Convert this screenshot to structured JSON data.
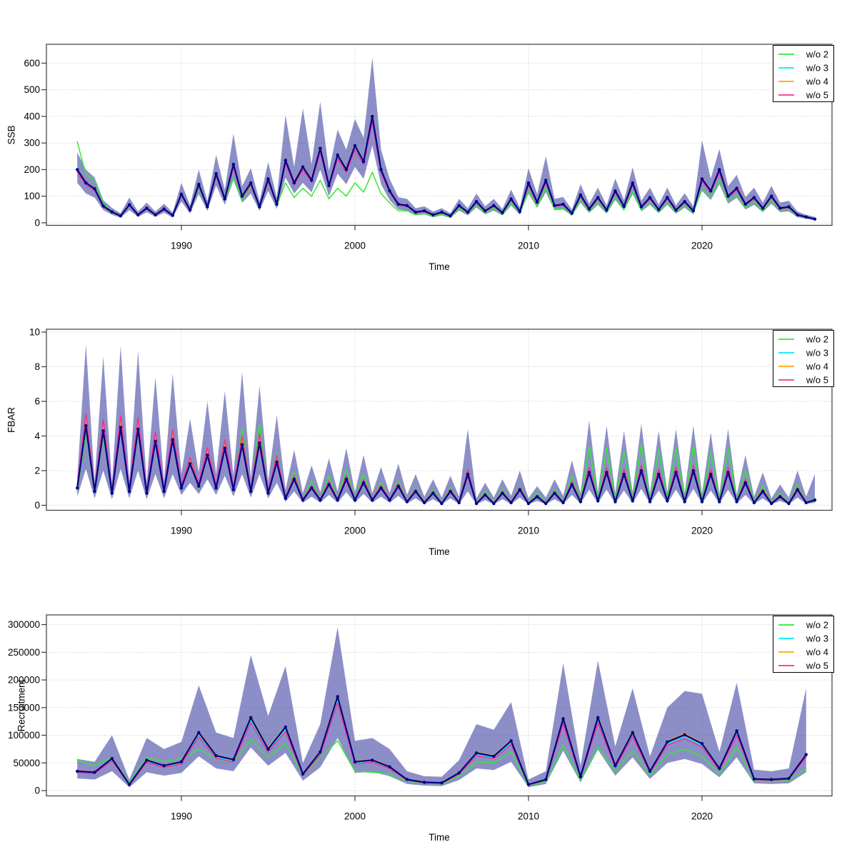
{
  "figure": {
    "background": "#ffffff",
    "panel_count": 3,
    "x_axis_ticks": [
      1990,
      2000,
      2010,
      2020
    ],
    "x_axis_label": "Time"
  },
  "colors": {
    "fit_line": "#00008b",
    "band_fill": "rgba(70,75,165,0.62)",
    "grid": "#c9c9c9",
    "axis": "#3c3c3c",
    "legend_border": "#000000",
    "wo2_green": "#33e833",
    "wo3_cyan": "#00eeee",
    "wo4_orange": "#ffa500",
    "wo5_pink": "#ff2d8d"
  },
  "chart_data": [
    {
      "type": "line",
      "ylabel": "SSB",
      "xlabel": "Time",
      "ylim": [
        0,
        620
      ],
      "yticks": [
        0,
        100,
        200,
        300,
        400,
        500,
        600
      ],
      "xticks": [
        1990,
        2000,
        2010,
        2020
      ],
      "grid": true,
      "legend_position": "top-right",
      "x": {
        "start": 1984,
        "step": 0.5,
        "count": 86
      },
      "band": {
        "lo": [
          150,
          110,
          95,
          48,
          30,
          19,
          48,
          22,
          40,
          22,
          38,
          20,
          80,
          35,
          108,
          45,
          140,
          68,
          160,
          75,
          110,
          45,
          120,
          52,
          170,
          110,
          150,
          115,
          200,
          100,
          185,
          145,
          210,
          165,
          290,
          145,
          85,
          50,
          46,
          28,
          32,
          21,
          28,
          18,
          46,
          28,
          58,
          32,
          46,
          27,
          65,
          30,
          110,
          56,
          115,
          47,
          50,
          26,
          76,
          37,
          68,
          34,
          86,
          45,
          108,
          43,
          68,
          36,
          68,
          34,
          57,
          32,
          120,
          86,
          145,
          72,
          94,
          50,
          68,
          40,
          72,
          40,
          43,
          21,
          15,
          9
        ],
        "hi": [
          265,
          200,
          170,
          85,
          56,
          36,
          95,
          42,
          76,
          42,
          72,
          39,
          150,
          66,
          200,
          82,
          255,
          125,
          335,
          138,
          205,
          82,
          228,
          96,
          405,
          210,
          430,
          220,
          455,
          195,
          350,
          275,
          390,
          320,
          620,
          275,
          165,
          96,
          90,
          55,
          62,
          42,
          55,
          36,
          90,
          55,
          110,
          62,
          90,
          52,
          125,
          58,
          205,
          108,
          250,
          90,
          97,
          50,
          145,
          72,
          132,
          66,
          166,
          86,
          208,
          83,
          132,
          69,
          132,
          66,
          111,
          62,
          310,
          166,
          277,
          138,
          180,
          97,
          132,
          76,
          139,
          76,
          83,
          42,
          30,
          22
        ]
      },
      "series": [
        {
          "name": "w/o 2",
          "color": "#33e833",
          "in_legend": true,
          "values": [
            305,
            180,
            160,
            70,
            45,
            28,
            66,
            30,
            56,
            32,
            50,
            28,
            100,
            46,
            130,
            58,
            175,
            85,
            170,
            85,
            140,
            55,
            155,
            65,
            150,
            95,
            130,
            100,
            160,
            90,
            130,
            100,
            150,
            115,
            190,
            110,
            75,
            45,
            45,
            30,
            35,
            24,
            32,
            22,
            55,
            34,
            65,
            38,
            55,
            32,
            75,
            36,
            120,
            62,
            130,
            52,
            55,
            30,
            85,
            42,
            78,
            40,
            95,
            50,
            120,
            48,
            75,
            40,
            75,
            40,
            65,
            38,
            130,
            95,
            160,
            82,
            105,
            58,
            78,
            46,
            85,
            48,
            52,
            27,
            20,
            13
          ]
        },
        {
          "name": "w/o 3",
          "color": "#00eeee",
          "in_legend": true,
          "derive_from": "fit",
          "offset_frac": -0.03
        },
        {
          "name": "w/o 4",
          "color": "#ffa500",
          "in_legend": true,
          "derive_from": "fit",
          "offset_frac": 0.015
        },
        {
          "name": "w/o 5",
          "color": "#ff2d8d",
          "in_legend": true,
          "derive_from": "fit",
          "offset_frac": -0.05
        },
        {
          "name": "fit",
          "color": "#00008b",
          "in_legend": false,
          "points": true,
          "values": [
            200,
            150,
            128,
            63,
            41,
            26,
            68,
            30,
            55,
            30,
            52,
            28,
            108,
            48,
            145,
            60,
            185,
            90,
            220,
            100,
            150,
            60,
            165,
            70,
            235,
            150,
            210,
            160,
            280,
            140,
            255,
            200,
            290,
            230,
            400,
            200,
            120,
            70,
            65,
            40,
            45,
            30,
            40,
            26,
            65,
            40,
            80,
            45,
            65,
            38,
            90,
            42,
            150,
            78,
            160,
            65,
            70,
            36,
            105,
            52,
            95,
            48,
            120,
            62,
            150,
            60,
            95,
            50,
            95,
            48,
            80,
            45,
            165,
            120,
            200,
            100,
            130,
            70,
            95,
            55,
            100,
            55,
            60,
            30,
            22,
            14
          ]
        }
      ]
    },
    {
      "type": "line",
      "ylabel": "FBAR",
      "xlabel": "Time",
      "ylim": [
        0,
        10
      ],
      "yticks": [
        0,
        2,
        4,
        6,
        8,
        10
      ],
      "xticks": [
        1990,
        2000,
        2010,
        2020
      ],
      "grid": true,
      "legend_position": "top-right",
      "x": {
        "start": 1984,
        "step": 0.5,
        "count": 86
      },
      "band": {
        "lo": [
          0.5,
          2.1,
          0.4,
          2.0,
          0.35,
          2.1,
          0.4,
          2.0,
          0.35,
          1.8,
          0.4,
          1.8,
          0.6,
          1.3,
          0.65,
          1.5,
          0.6,
          1.7,
          0.5,
          1.8,
          0.45,
          1.8,
          0.4,
          1.3,
          0.2,
          0.8,
          0.15,
          0.5,
          0.15,
          0.6,
          0.15,
          0.75,
          0.15,
          0.65,
          0.15,
          0.5,
          0.15,
          0.55,
          0.1,
          0.4,
          0.07,
          0.35,
          0.05,
          0.4,
          0.07,
          0.8,
          0.05,
          0.3,
          0.05,
          0.35,
          0.07,
          0.45,
          0.05,
          0.25,
          0.05,
          0.35,
          0.07,
          0.6,
          0.1,
          0.9,
          0.12,
          0.9,
          0.1,
          0.85,
          0.12,
          0.95,
          0.1,
          0.85,
          0.12,
          0.9,
          0.1,
          0.95,
          0.1,
          0.85,
          0.1,
          0.9,
          0.1,
          0.6,
          0.07,
          0.4,
          0.05,
          0.25,
          0.05,
          0.45,
          0.07,
          0.15
        ],
        "hi": [
          1.6,
          9.3,
          1.4,
          8.6,
          1.3,
          9.2,
          1.4,
          8.9,
          1.3,
          7.4,
          1.4,
          7.6,
          1.8,
          5.0,
          1.9,
          6.0,
          1.8,
          6.6,
          1.7,
          7.7,
          1.6,
          6.9,
          1.4,
          5.2,
          0.9,
          3.2,
          0.7,
          2.3,
          0.75,
          2.7,
          0.8,
          3.3,
          0.75,
          2.9,
          0.7,
          2.2,
          0.7,
          2.4,
          0.6,
          1.8,
          0.5,
          1.5,
          0.45,
          1.7,
          0.5,
          4.4,
          0.4,
          1.3,
          0.45,
          1.5,
          0.55,
          2.0,
          0.4,
          1.1,
          0.45,
          1.5,
          0.55,
          2.6,
          0.7,
          4.9,
          0.75,
          4.6,
          0.7,
          4.3,
          0.75,
          4.7,
          0.7,
          4.3,
          0.75,
          4.4,
          0.7,
          4.6,
          0.65,
          4.2,
          0.65,
          4.4,
          0.6,
          2.9,
          0.5,
          1.9,
          0.4,
          1.2,
          0.45,
          2.0,
          0.5,
          1.8
        ]
      },
      "series": [
        {
          "name": "w/o 2",
          "color": "#33e833",
          "in_legend": true,
          "values": [
            0.8,
            4.2,
            0.7,
            4.0,
            0.65,
            4.6,
            0.75,
            4.2,
            0.7,
            3.9,
            0.75,
            4.0,
            1.0,
            2.6,
            1.0,
            3.1,
            0.95,
            3.6,
            0.85,
            4.4,
            0.8,
            4.7,
            0.7,
            3.0,
            0.45,
            1.9,
            0.35,
            1.4,
            0.35,
            1.7,
            0.35,
            2.1,
            0.35,
            1.8,
            0.3,
            1.3,
            0.3,
            1.4,
            0.25,
            1.0,
            0.2,
            0.9,
            0.15,
            1.0,
            0.2,
            2.1,
            0.15,
            0.8,
            0.15,
            0.9,
            0.2,
            1.1,
            0.15,
            0.7,
            0.15,
            0.9,
            0.2,
            1.7,
            0.25,
            3.4,
            0.3,
            3.3,
            0.25,
            3.1,
            0.3,
            3.5,
            0.25,
            3.2,
            0.3,
            3.3,
            0.25,
            3.4,
            0.25,
            3.1,
            0.25,
            3.3,
            0.25,
            2.0,
            0.2,
            1.1,
            0.15,
            0.7,
            0.15,
            1.2,
            0.2,
            0.4
          ]
        },
        {
          "name": "w/o 3",
          "color": "#00eeee",
          "in_legend": true,
          "derive_from": "fit",
          "offset_frac": 0.04
        },
        {
          "name": "w/o 4",
          "color": "#ffa500",
          "in_legend": true,
          "derive_from": "fit",
          "offset_frac": 0.08
        },
        {
          "name": "w/o 5",
          "color": "#ff2d8d",
          "in_legend": true,
          "derive_from": "fit",
          "offset_frac": 0.15
        },
        {
          "name": "fit",
          "color": "#00008b",
          "in_legend": false,
          "points": true,
          "values": [
            1.0,
            4.6,
            0.8,
            4.3,
            0.7,
            4.5,
            0.8,
            4.4,
            0.7,
            3.7,
            0.8,
            3.8,
            1.0,
            2.4,
            1.1,
            2.9,
            1.0,
            3.3,
            0.9,
            3.5,
            0.8,
            3.6,
            0.7,
            2.5,
            0.4,
            1.5,
            0.3,
            1.0,
            0.3,
            1.2,
            0.3,
            1.5,
            0.3,
            1.3,
            0.3,
            1.0,
            0.3,
            1.1,
            0.2,
            0.8,
            0.15,
            0.7,
            0.1,
            0.8,
            0.15,
            1.8,
            0.1,
            0.6,
            0.1,
            0.7,
            0.15,
            0.9,
            0.1,
            0.5,
            0.1,
            0.7,
            0.15,
            1.2,
            0.2,
            1.9,
            0.25,
            1.9,
            0.2,
            1.8,
            0.25,
            2.0,
            0.2,
            1.8,
            0.25,
            1.9,
            0.2,
            2.0,
            0.2,
            1.8,
            0.2,
            1.9,
            0.2,
            1.3,
            0.15,
            0.8,
            0.1,
            0.5,
            0.1,
            0.9,
            0.15,
            0.3
          ]
        }
      ]
    },
    {
      "type": "line",
      "ylabel": "Recruitment",
      "xlabel": "Time",
      "ylim": [
        0,
        310000
      ],
      "yticks": [
        0,
        50000,
        100000,
        150000,
        200000,
        250000,
        300000
      ],
      "xticks": [
        1990,
        2000,
        2010,
        2020
      ],
      "grid": true,
      "legend_position": "top-right",
      "x": {
        "start": 1984,
        "step": 1,
        "count": 43
      },
      "band": {
        "lo": [
          22000,
          20000,
          35000,
          6000,
          33000,
          27000,
          32000,
          62000,
          40000,
          35000,
          78000,
          45000,
          68000,
          18000,
          42000,
          95000,
          32000,
          34000,
          26000,
          12000,
          9000,
          8000,
          19000,
          40000,
          37000,
          52000,
          6000,
          12000,
          72000,
          15000,
          74000,
          27000,
          60000,
          21000,
          50000,
          57000,
          48000,
          24000,
          60000,
          13000,
          12000,
          13000,
          33000
        ],
        "hi": [
          57000,
          52000,
          100000,
          20000,
          95000,
          75000,
          88000,
          190000,
          105000,
          95000,
          245000,
          135000,
          225000,
          50000,
          120000,
          295000,
          90000,
          95000,
          75000,
          35000,
          26000,
          25000,
          55000,
          120000,
          110000,
          160000,
          20000,
          35000,
          230000,
          45000,
          235000,
          80000,
          185000,
          62000,
          150000,
          180000,
          175000,
          70000,
          195000,
          38000,
          35000,
          40000,
          185000
        ]
      },
      "series": [
        {
          "name": "w/o 2",
          "color": "#33e833",
          "in_legend": true,
          "values": [
            55000,
            45000,
            60000,
            14000,
            60000,
            52000,
            58000,
            75000,
            58000,
            52000,
            92000,
            60000,
            85000,
            28000,
            60000,
            90000,
            35000,
            33000,
            30000,
            17000,
            13000,
            12000,
            26000,
            52000,
            50000,
            70000,
            9000,
            16000,
            82000,
            20000,
            78000,
            35000,
            72000,
            28000,
            65000,
            75000,
            62000,
            30000,
            78000,
            17000,
            16000,
            18000,
            40000
          ]
        },
        {
          "name": "w/o 3",
          "color": "#00eeee",
          "in_legend": true,
          "derive_from": "fit",
          "offset_frac": -0.04
        },
        {
          "name": "w/o 4",
          "color": "#ffa500",
          "in_legend": true,
          "derive_from": "fit",
          "offset_frac": 0.02
        },
        {
          "name": "w/o 5",
          "color": "#ff2d8d",
          "in_legend": true,
          "derive_from": "fit",
          "offset_frac": -0.07
        },
        {
          "name": "fit",
          "color": "#00008b",
          "in_legend": false,
          "points": true,
          "values": [
            35000,
            33000,
            58000,
            11000,
            55000,
            45000,
            52000,
            105000,
            63000,
            56000,
            132000,
            75000,
            115000,
            30000,
            70000,
            170000,
            52000,
            55000,
            43000,
            20000,
            15000,
            14000,
            32000,
            68000,
            62000,
            90000,
            11000,
            20000,
            130000,
            25000,
            132000,
            45000,
            105000,
            35000,
            88000,
            101000,
            85000,
            40000,
            108000,
            21000,
            20000,
            22000,
            65000
          ]
        }
      ]
    }
  ],
  "legend": {
    "entries": [
      {
        "label": "w/o 2",
        "color": "#33e833"
      },
      {
        "label": "w/o 3",
        "color": "#00eeee"
      },
      {
        "label": "w/o 4",
        "color": "#ffa500"
      },
      {
        "label": "w/o 5",
        "color": "#ff2d8d"
      }
    ]
  }
}
